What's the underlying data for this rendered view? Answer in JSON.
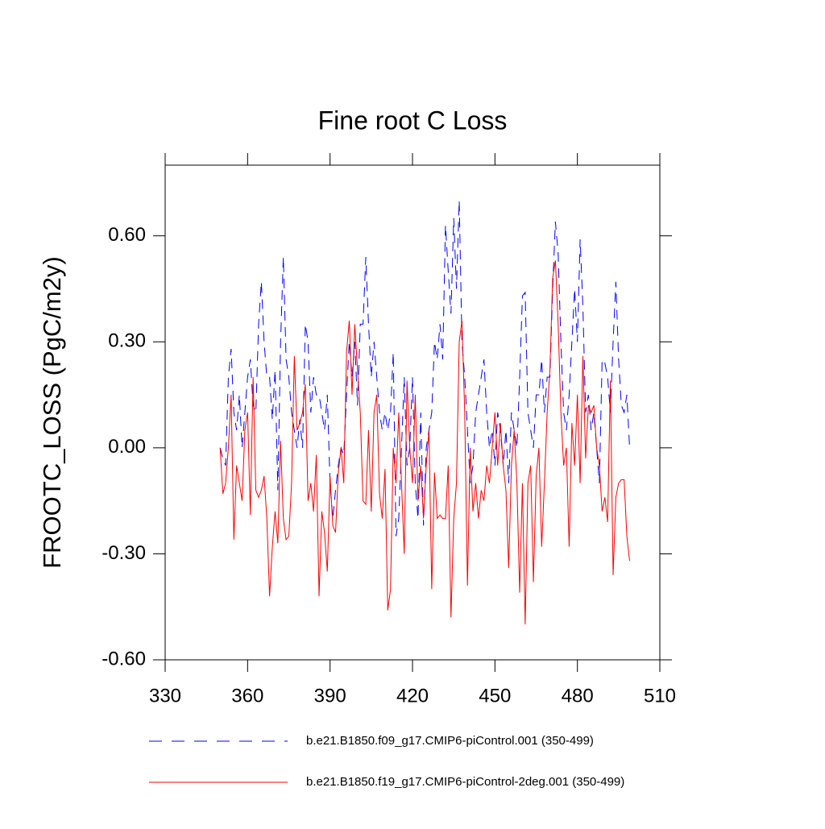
{
  "chart_data": {
    "type": "line",
    "title": "Fine root C Loss",
    "ylabel": "FROOTC_LOSS  (PgC/m2y)",
    "xlim": [
      330,
      510
    ],
    "xticks": [
      330,
      360,
      390,
      420,
      450,
      480,
      510
    ],
    "ylim": [
      -0.6,
      0.8
    ],
    "yticks": [
      {
        "value": -0.6,
        "label": "-0.60"
      },
      {
        "value": -0.3,
        "label": "-0.30"
      },
      {
        "value": 0,
        "label": "0.00"
      },
      {
        "value": 0.3,
        "label": "0.30"
      },
      {
        "value": 0.6,
        "label": "0.60"
      }
    ],
    "x": [
      350,
      351,
      352,
      353,
      354,
      355,
      356,
      357,
      358,
      359,
      360,
      361,
      362,
      363,
      364,
      365,
      366,
      367,
      368,
      369,
      370,
      371,
      372,
      373,
      374,
      375,
      376,
      377,
      378,
      379,
      380,
      381,
      382,
      383,
      384,
      385,
      386,
      387,
      388,
      389,
      390,
      391,
      392,
      393,
      394,
      395,
      396,
      397,
      398,
      399,
      400,
      401,
      402,
      403,
      404,
      405,
      406,
      407,
      408,
      409,
      410,
      411,
      412,
      413,
      414,
      415,
      416,
      417,
      418,
      419,
      420,
      421,
      422,
      423,
      424,
      425,
      426,
      427,
      428,
      429,
      430,
      431,
      432,
      433,
      434,
      435,
      436,
      437,
      438,
      439,
      440,
      441,
      442,
      443,
      444,
      445,
      446,
      447,
      448,
      449,
      450,
      451,
      452,
      453,
      454,
      455,
      456,
      457,
      458,
      459,
      460,
      461,
      462,
      463,
      464,
      465,
      466,
      467,
      468,
      469,
      470,
      471,
      472,
      473,
      474,
      475,
      476,
      477,
      478,
      479,
      480,
      481,
      482,
      483,
      484,
      485,
      486,
      487,
      488,
      489,
      490,
      491,
      492,
      493,
      494,
      495,
      496,
      497,
      498,
      499
    ],
    "series": [
      {
        "name": "b.e21.B1850.f09_g17.CMIP6-piControl.001 (350-499)",
        "color": "#0000ff",
        "dash": true,
        "values": [
          0.0,
          -0.03,
          -0.05,
          0.2,
          0.28,
          0.1,
          0.05,
          0.15,
          0.0,
          0.1,
          0.2,
          0.25,
          0.12,
          0.1,
          0.35,
          0.47,
          0.3,
          0.2,
          0.2,
          0.08,
          0.22,
          -0.12,
          0.3,
          0.54,
          0.25,
          0.2,
          0.1,
          0.05,
          0.0,
          0.08,
          0.0,
          0.35,
          0.3,
          0.1,
          0.2,
          0.15,
          0.15,
          0.1,
          0.05,
          0.15,
          -0.1,
          -0.2,
          -0.12,
          -0.05,
          0.0,
          -0.02,
          0.15,
          0.3,
          0.2,
          0.3,
          0.12,
          0.35,
          0.35,
          0.54,
          0.35,
          0.2,
          0.3,
          0.2,
          0.1,
          0.05,
          0.1,
          0.05,
          0.1,
          0.27,
          -0.25,
          -0.2,
          0.0,
          0.2,
          -0.05,
          0.0,
          0.2,
          -0.1,
          -0.2,
          0.1,
          -0.22,
          0.0,
          0.05,
          0.1,
          0.3,
          0.25,
          0.35,
          0.25,
          0.63,
          0.5,
          0.38,
          0.65,
          0.45,
          0.7,
          0.3,
          0.2,
          0.05,
          -0.1,
          -0.05,
          0.1,
          0.15,
          0.2,
          0.25,
          0.1,
          0.0,
          0.05,
          -0.05,
          0.1,
          0.05,
          -0.05,
          0.05,
          -0.1,
          0.1,
          0.05,
          0.0,
          0.2,
          0.43,
          0.44,
          0.1,
          0.05,
          0.0,
          0.15,
          0.15,
          0.25,
          0.1,
          0.2,
          0.2,
          0.45,
          0.64,
          0.55,
          0.3,
          0.1,
          0.05,
          0.15,
          0.3,
          0.45,
          0.3,
          0.59,
          0.4,
          0.1,
          0.15,
          0.05,
          0.1,
          0.0,
          -0.1,
          0.25,
          0.24,
          0.2,
          0.1,
          0.3,
          0.47,
          0.25,
          0.12,
          0.1,
          0.15,
          0.0
        ]
      },
      {
        "name": "b.e21.B1850.f19_g17.CMIP6-piControl-2deg.001 (350-499)",
        "color": "#ff0000",
        "dash": false,
        "values": [
          0.0,
          -0.13,
          -0.1,
          0.0,
          0.15,
          -0.26,
          -0.05,
          -0.1,
          -0.15,
          0.05,
          0.1,
          -0.19,
          0.2,
          -0.12,
          -0.14,
          -0.12,
          -0.08,
          -0.2,
          -0.42,
          -0.28,
          -0.18,
          -0.27,
          0.02,
          -0.2,
          -0.26,
          -0.25,
          -0.1,
          0.26,
          0.05,
          0.07,
          0.1,
          0.18,
          -0.15,
          -0.1,
          -0.18,
          -0.02,
          -0.42,
          -0.18,
          -0.24,
          -0.35,
          -0.08,
          -0.22,
          -0.24,
          -0.07,
          0.0,
          -0.1,
          0.27,
          0.36,
          0.15,
          0.35,
          0.22,
          0.1,
          -0.15,
          -0.16,
          0.05,
          -0.18,
          0.1,
          0.15,
          -0.13,
          -0.2,
          -0.06,
          -0.46,
          -0.4,
          0.0,
          -0.1,
          0.1,
          -0.1,
          -0.3,
          0.19,
          0.0,
          -0.1,
          0.15,
          -0.15,
          -0.05,
          -0.2,
          -0.05,
          0.05,
          -0.4,
          -0.07,
          -0.2,
          -0.19,
          -0.2,
          -0.2,
          -0.05,
          -0.48,
          -0.2,
          -0.1,
          0.3,
          0.36,
          0.1,
          -0.39,
          0.0,
          -0.18,
          -0.1,
          -0.2,
          -0.12,
          -0.15,
          -0.05,
          -0.1,
          0.0,
          0.1,
          -0.05,
          0.07,
          -0.05,
          -0.12,
          -0.34,
          -0.05,
          0.05,
          -0.1,
          -0.41,
          -0.1,
          -0.5,
          -0.1,
          -0.05,
          -0.38,
          -0.08,
          0.0,
          -0.28,
          -0.1,
          0.1,
          0.22,
          0.48,
          0.53,
          0.35,
          0.1,
          -0.05,
          0.0,
          -0.28,
          0.07,
          -0.05,
          0.15,
          -0.1,
          0.26,
          -0.03,
          0.12,
          0.1,
          0.12,
          0.0,
          -0.05,
          -0.18,
          -0.14,
          -0.21,
          0.19,
          -0.36,
          -0.14,
          -0.1,
          -0.09,
          -0.09,
          -0.25,
          -0.32
        ]
      }
    ]
  }
}
